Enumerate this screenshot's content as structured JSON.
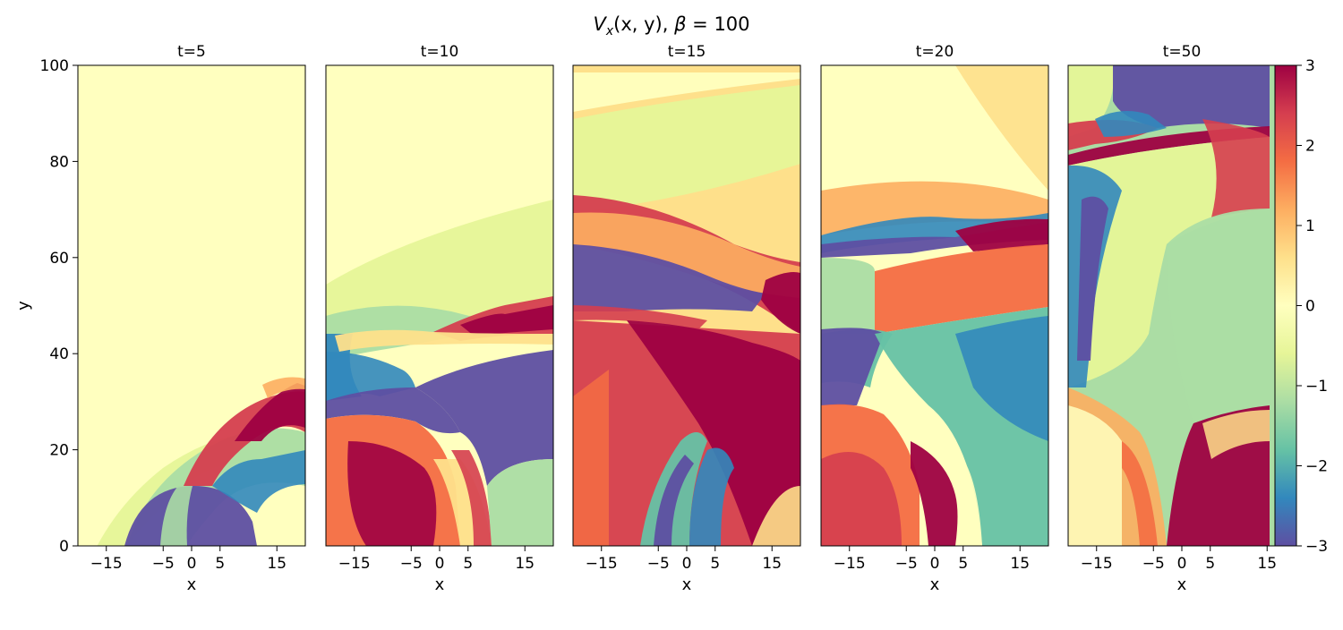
{
  "chart_data": {
    "type": "heatmap",
    "title_parts": {
      "var": "V",
      "sub": "x",
      "args": "(x, y), ",
      "beta": "β",
      "eq": " = 100"
    },
    "panels": [
      {
        "title": "t=5",
        "time": 5
      },
      {
        "title": "t=10",
        "time": 10
      },
      {
        "title": "t=15",
        "time": 15
      },
      {
        "title": "t=20",
        "time": 20
      },
      {
        "title": "t=50",
        "time": 50
      }
    ],
    "xlabel": "x",
    "ylabel": "y",
    "xlim": [
      -20,
      20
    ],
    "ylim": [
      0,
      100
    ],
    "xticks": [
      -15,
      -5,
      0,
      5,
      15
    ],
    "yticks": [
      0,
      20,
      40,
      60,
      80,
      100
    ],
    "colorbar": {
      "cmap": "Spectral_r",
      "vmin": -3,
      "vmax": 3,
      "ticks": [
        -3,
        -2,
        -1,
        0,
        1,
        2,
        3
      ],
      "colors": [
        "#5e4fa2",
        "#3288bd",
        "#66c2a5",
        "#abdda4",
        "#e6f598",
        "#ffffbf",
        "#fee08b",
        "#fdae61",
        "#f46d43",
        "#d53e4f",
        "#9e0142"
      ]
    }
  }
}
